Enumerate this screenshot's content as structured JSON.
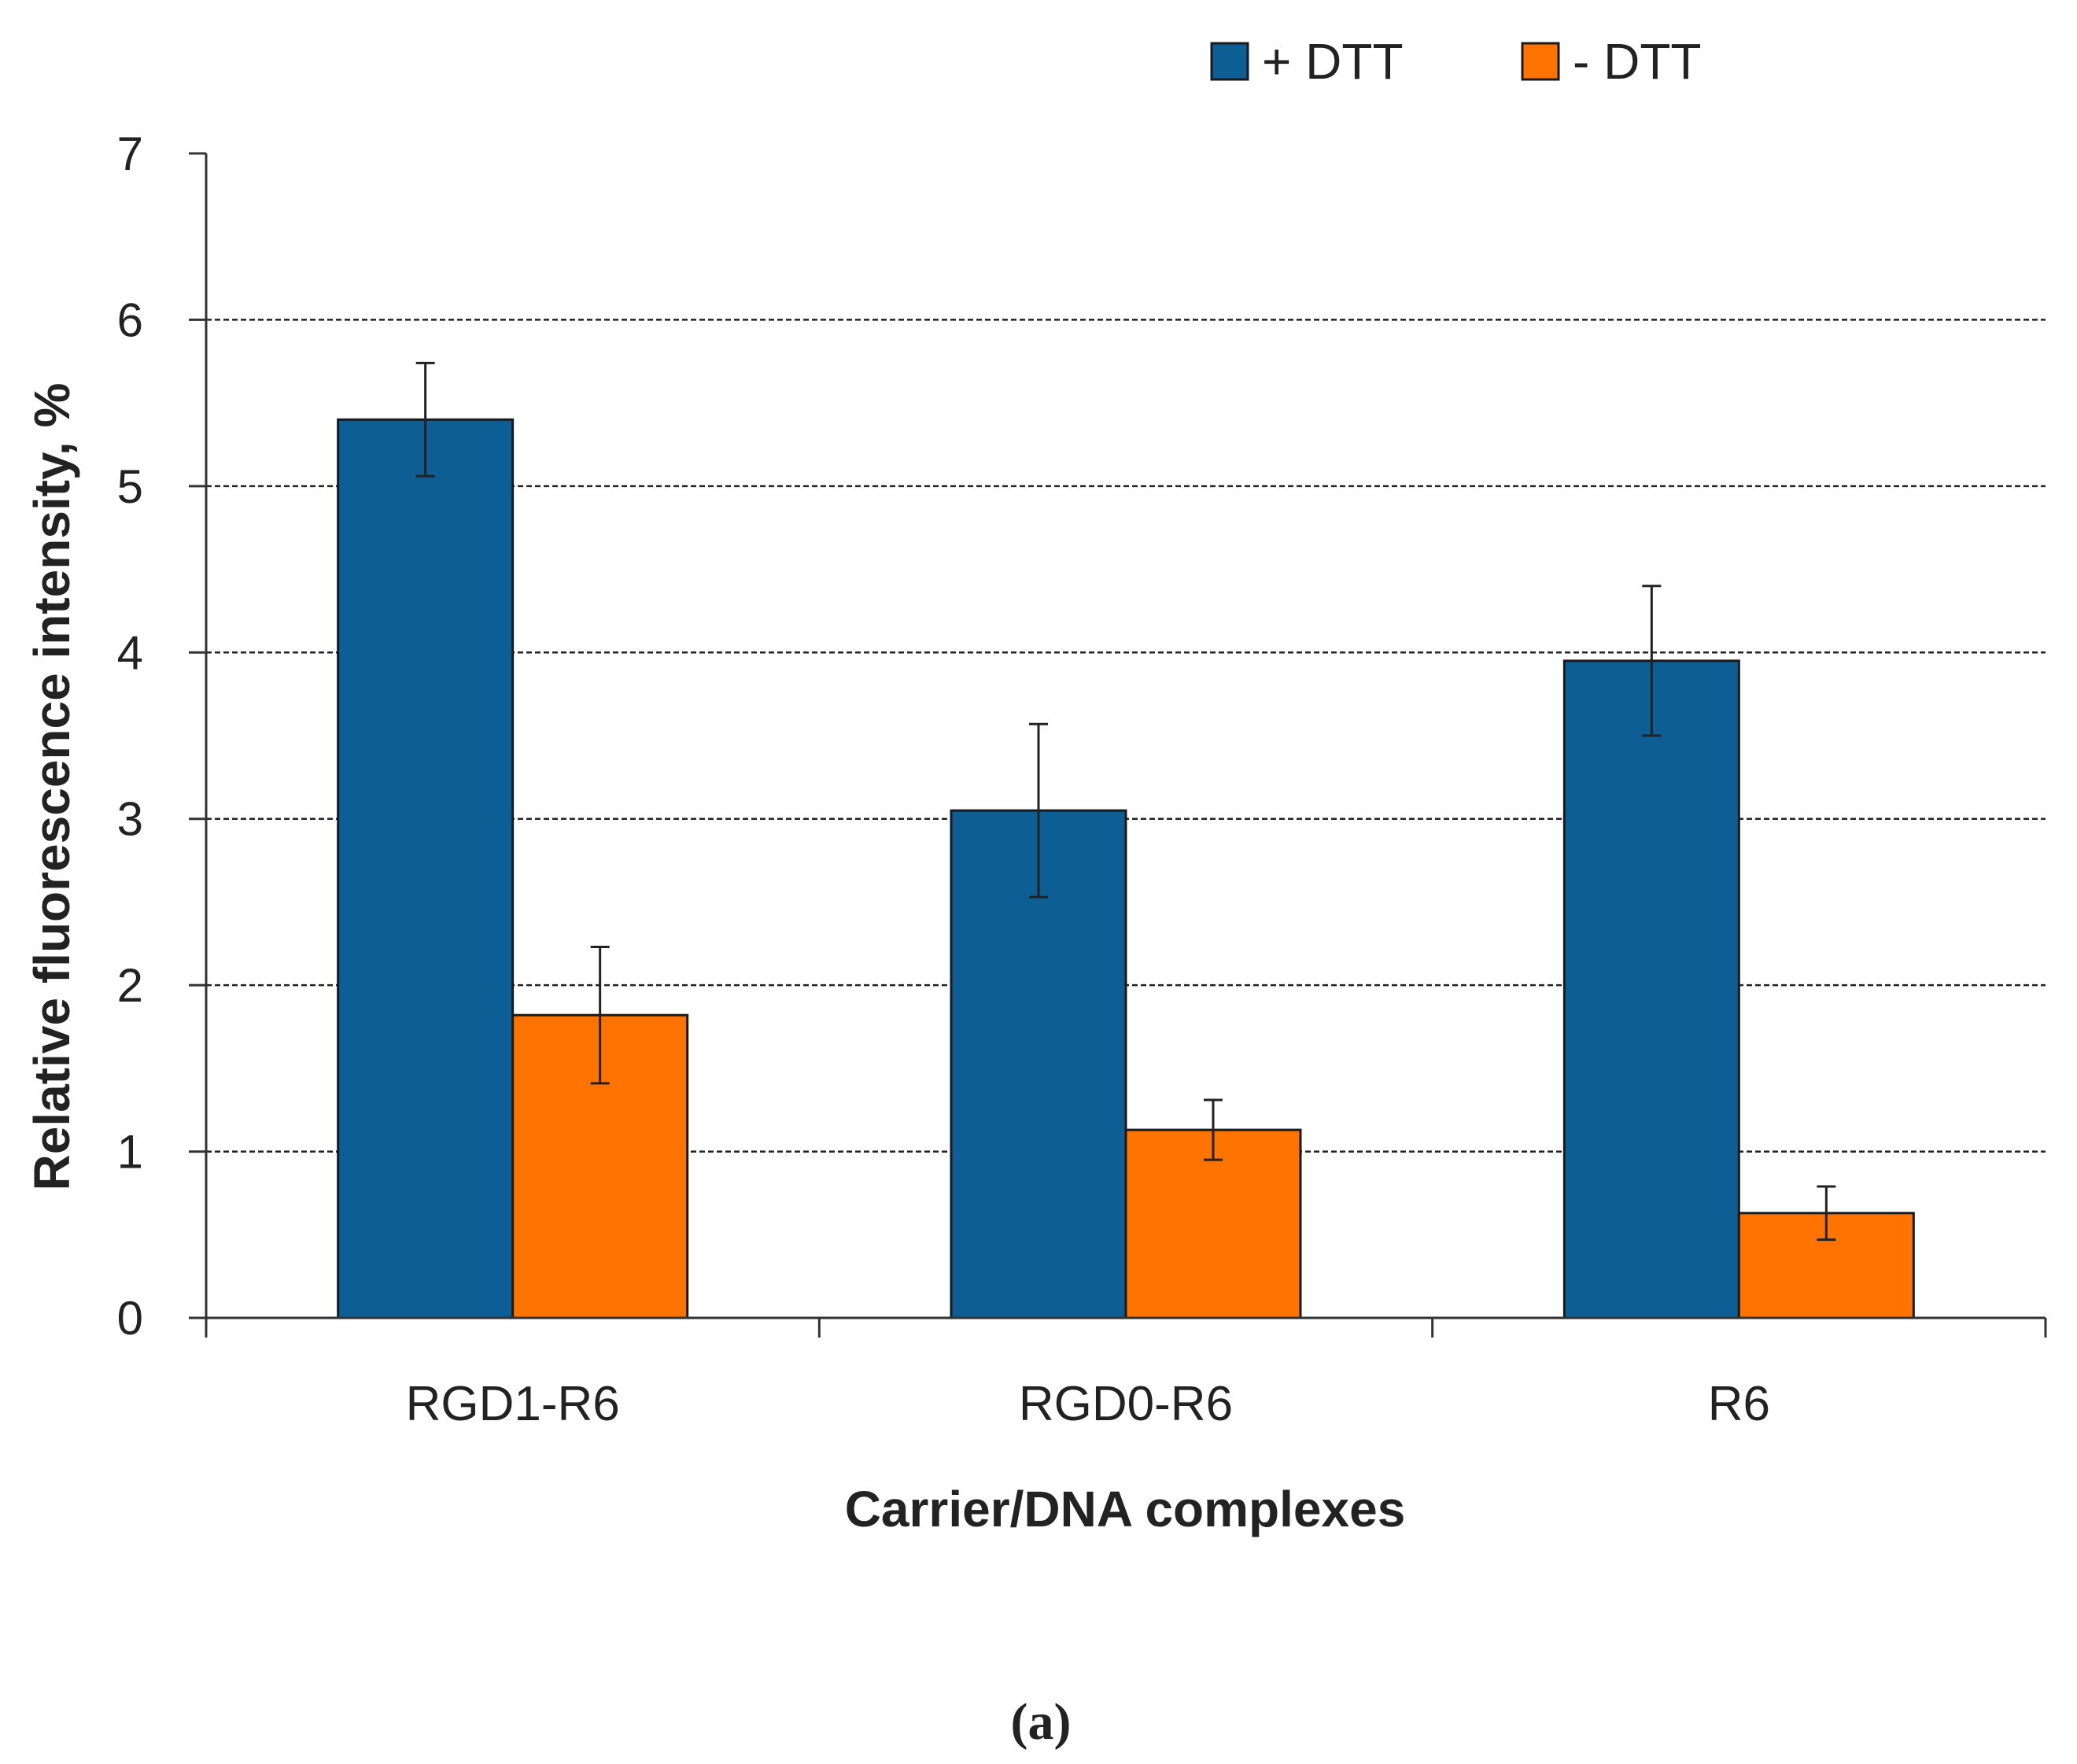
{
  "chart_data": {
    "type": "bar",
    "categories": [
      "RGD1-R6",
      "RGD0-R6",
      "R6"
    ],
    "series": [
      {
        "name": "+ DTT",
        "color": "#0d5e94",
        "values": [
          5.4,
          3.05,
          3.95
        ],
        "errors": [
          0.34,
          0.52,
          0.45
        ]
      },
      {
        "name": "- DTT",
        "color": "#ff7300",
        "values": [
          1.82,
          1.13,
          0.63
        ],
        "errors": [
          0.41,
          0.18,
          0.16
        ]
      }
    ],
    "xlabel": "Carrier/DNA complexes",
    "ylabel": "Relative fluorescence intensity, %",
    "ylim": [
      0,
      7
    ],
    "yticks": [
      0,
      1,
      2,
      3,
      4,
      5,
      6,
      7
    ],
    "grid": true,
    "legend": "top-right",
    "panel_label": "(a)"
  }
}
